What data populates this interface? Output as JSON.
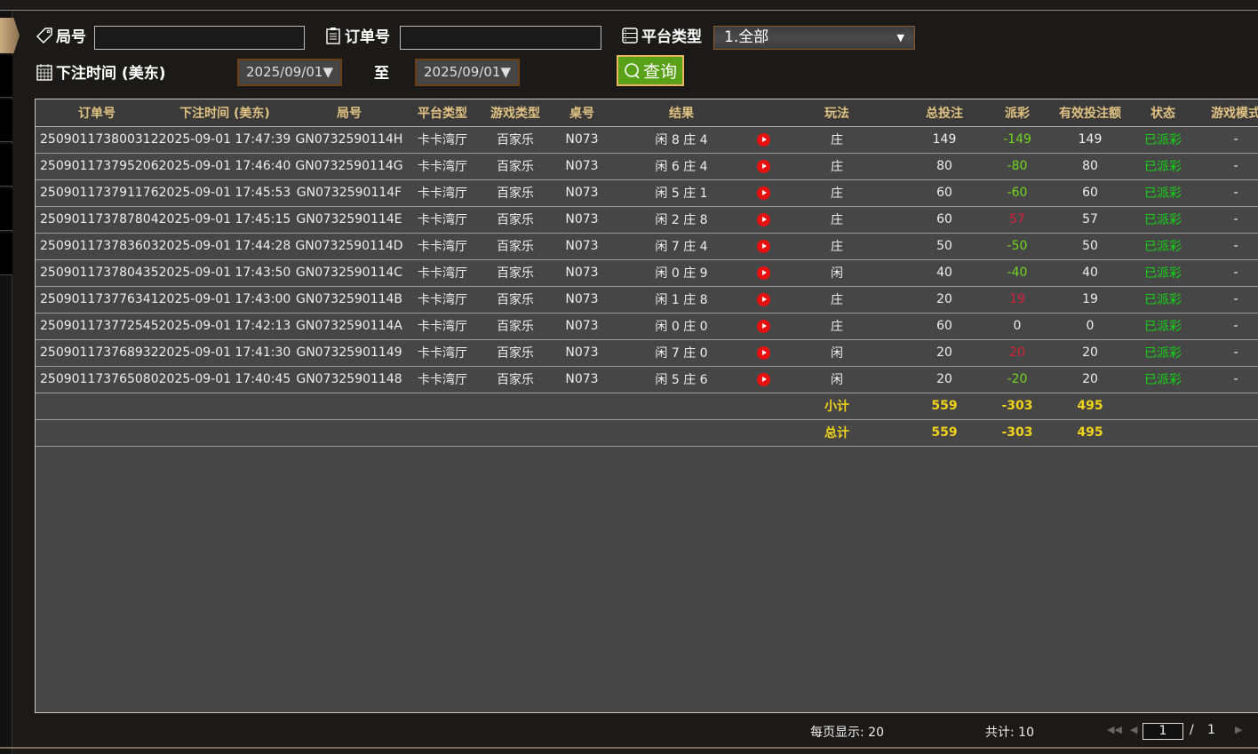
{
  "filters": {
    "round_label": "局号",
    "round_value": "",
    "order_label": "订单号",
    "order_value": "",
    "platform_label": "平台类型",
    "platform_value": "1.全部",
    "time_label": "下注时间 (美东)",
    "date_from": "2025/09/01",
    "to_label": "至",
    "date_to": "2025/09/01",
    "query_label": "查询"
  },
  "columns": [
    "订单号",
    "下注时间 (美东)",
    "局号",
    "平台类型",
    "游戏类型",
    "桌号",
    "结果",
    "",
    "玩法",
    "总投注",
    "派彩",
    "有效投注额",
    "状态",
    "游戏模式"
  ],
  "rows": [
    [
      "250901173800312",
      "2025-09-01 17:47:39",
      "GN0732590114H",
      "卡卡湾厅",
      "百家乐",
      "N073",
      "闲 8 庄 4",
      "庄",
      "149",
      "-149",
      "149",
      "已派彩",
      "-"
    ],
    [
      "250901173795206",
      "2025-09-01 17:46:40",
      "GN0732590114G",
      "卡卡湾厅",
      "百家乐",
      "N073",
      "闲 6 庄 4",
      "庄",
      "80",
      "-80",
      "80",
      "已派彩",
      "-"
    ],
    [
      "250901173791176",
      "2025-09-01 17:45:53",
      "GN0732590114F",
      "卡卡湾厅",
      "百家乐",
      "N073",
      "闲 5 庄 1",
      "庄",
      "60",
      "-60",
      "60",
      "已派彩",
      "-"
    ],
    [
      "250901173787804",
      "2025-09-01 17:45:15",
      "GN0732590114E",
      "卡卡湾厅",
      "百家乐",
      "N073",
      "闲 2 庄 8",
      "庄",
      "60",
      "57",
      "57",
      "已派彩",
      "-"
    ],
    [
      "250901173783603",
      "2025-09-01 17:44:28",
      "GN0732590114D",
      "卡卡湾厅",
      "百家乐",
      "N073",
      "闲 7 庄 4",
      "庄",
      "50",
      "-50",
      "50",
      "已派彩",
      "-"
    ],
    [
      "250901173780435",
      "2025-09-01 17:43:50",
      "GN0732590114C",
      "卡卡湾厅",
      "百家乐",
      "N073",
      "闲 0 庄 9",
      "闲",
      "40",
      "-40",
      "40",
      "已派彩",
      "-"
    ],
    [
      "250901173776341",
      "2025-09-01 17:43:00",
      "GN0732590114B",
      "卡卡湾厅",
      "百家乐",
      "N073",
      "闲 1 庄 8",
      "庄",
      "20",
      "19",
      "19",
      "已派彩",
      "-"
    ],
    [
      "250901173772545",
      "2025-09-01 17:42:13",
      "GN0732590114A",
      "卡卡湾厅",
      "百家乐",
      "N073",
      "闲 0 庄 0",
      "庄",
      "60",
      "0",
      "0",
      "已派彩",
      "-"
    ],
    [
      "250901173768932",
      "2025-09-01 17:41:30",
      "GN07325901149",
      "卡卡湾厅",
      "百家乐",
      "N073",
      "闲 7 庄 0",
      "闲",
      "20",
      "20",
      "20",
      "已派彩",
      "-"
    ],
    [
      "250901173765080",
      "2025-09-01 17:40:45",
      "GN07325901148",
      "卡卡湾厅",
      "百家乐",
      "N073",
      "闲 5 庄 6",
      "闲",
      "20",
      "-20",
      "20",
      "已派彩",
      "-"
    ]
  ],
  "subtotal": {
    "label": "小计",
    "total_bet": "559",
    "payout": "-303",
    "valid": "495"
  },
  "total": {
    "label": "总计",
    "total_bet": "559",
    "payout": "-303",
    "valid": "495"
  },
  "footer": {
    "per_page": "每页显示: 20",
    "count": "共计: 10",
    "page": "1",
    "sep": "/",
    "pages": "1"
  },
  "colors": {
    "header_text": "#e0c182",
    "negative": "#6fd61c",
    "positive": "#d8203a",
    "status": "#14d414",
    "sum": "#f0d21a",
    "query_button": "#5aa11a"
  }
}
